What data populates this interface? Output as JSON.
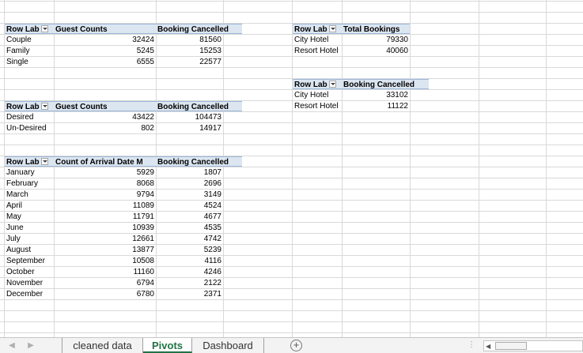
{
  "pivot1": {
    "headers": [
      "Row Lab",
      "Guest Counts",
      "Booking Cancelled"
    ],
    "rows": [
      {
        "label": "Couple",
        "guests": "32424",
        "cancelled": "81560"
      },
      {
        "label": "Family",
        "guests": "5245",
        "cancelled": "15253"
      },
      {
        "label": "Single",
        "guests": "6555",
        "cancelled": "22577"
      }
    ]
  },
  "pivot2": {
    "headers": [
      "Row Lab",
      "Guest Counts",
      "Booking Cancelled"
    ],
    "rows": [
      {
        "label": "Desired",
        "guests": "43422",
        "cancelled": "104473"
      },
      {
        "label": "Un-Desired",
        "guests": "802",
        "cancelled": "14917"
      }
    ]
  },
  "pivot3": {
    "headers": [
      "Row Lab",
      "Count of Arrival Date M",
      "Booking Cancelled"
    ],
    "rows": [
      {
        "label": "January",
        "count": "5929",
        "cancelled": "1807"
      },
      {
        "label": "February",
        "count": "8068",
        "cancelled": "2696"
      },
      {
        "label": "March",
        "count": "9794",
        "cancelled": "3149"
      },
      {
        "label": "April",
        "count": "11089",
        "cancelled": "4524"
      },
      {
        "label": "May",
        "count": "11791",
        "cancelled": "4677"
      },
      {
        "label": "June",
        "count": "10939",
        "cancelled": "4535"
      },
      {
        "label": "July",
        "count": "12661",
        "cancelled": "4742"
      },
      {
        "label": "August",
        "count": "13877",
        "cancelled": "5239"
      },
      {
        "label": "September",
        "count": "10508",
        "cancelled": "4116"
      },
      {
        "label": "October",
        "count": "11160",
        "cancelled": "4246"
      },
      {
        "label": "November",
        "count": "6794",
        "cancelled": "2122"
      },
      {
        "label": "December",
        "count": "6780",
        "cancelled": "2371"
      }
    ]
  },
  "pivot4": {
    "headers": [
      "Row Lab",
      "Total Bookings"
    ],
    "rows": [
      {
        "label": "City Hotel",
        "value": "79330"
      },
      {
        "label": "Resort Hotel",
        "value": "40060"
      }
    ]
  },
  "pivot5": {
    "headers": [
      "Row Lab",
      "Booking Cancelled"
    ],
    "rows": [
      {
        "label": "City Hotel",
        "value": "33102"
      },
      {
        "label": "Resort Hotel",
        "value": "11122"
      }
    ]
  },
  "tabs": {
    "items": [
      "cleaned data",
      "Pivots",
      "Dashboard"
    ],
    "active": "Pivots",
    "add_symbol": "+",
    "more_symbol": "⋮"
  },
  "nav": {
    "prev": "◀",
    "next": "▶"
  },
  "scroll": {
    "left": "◀"
  }
}
